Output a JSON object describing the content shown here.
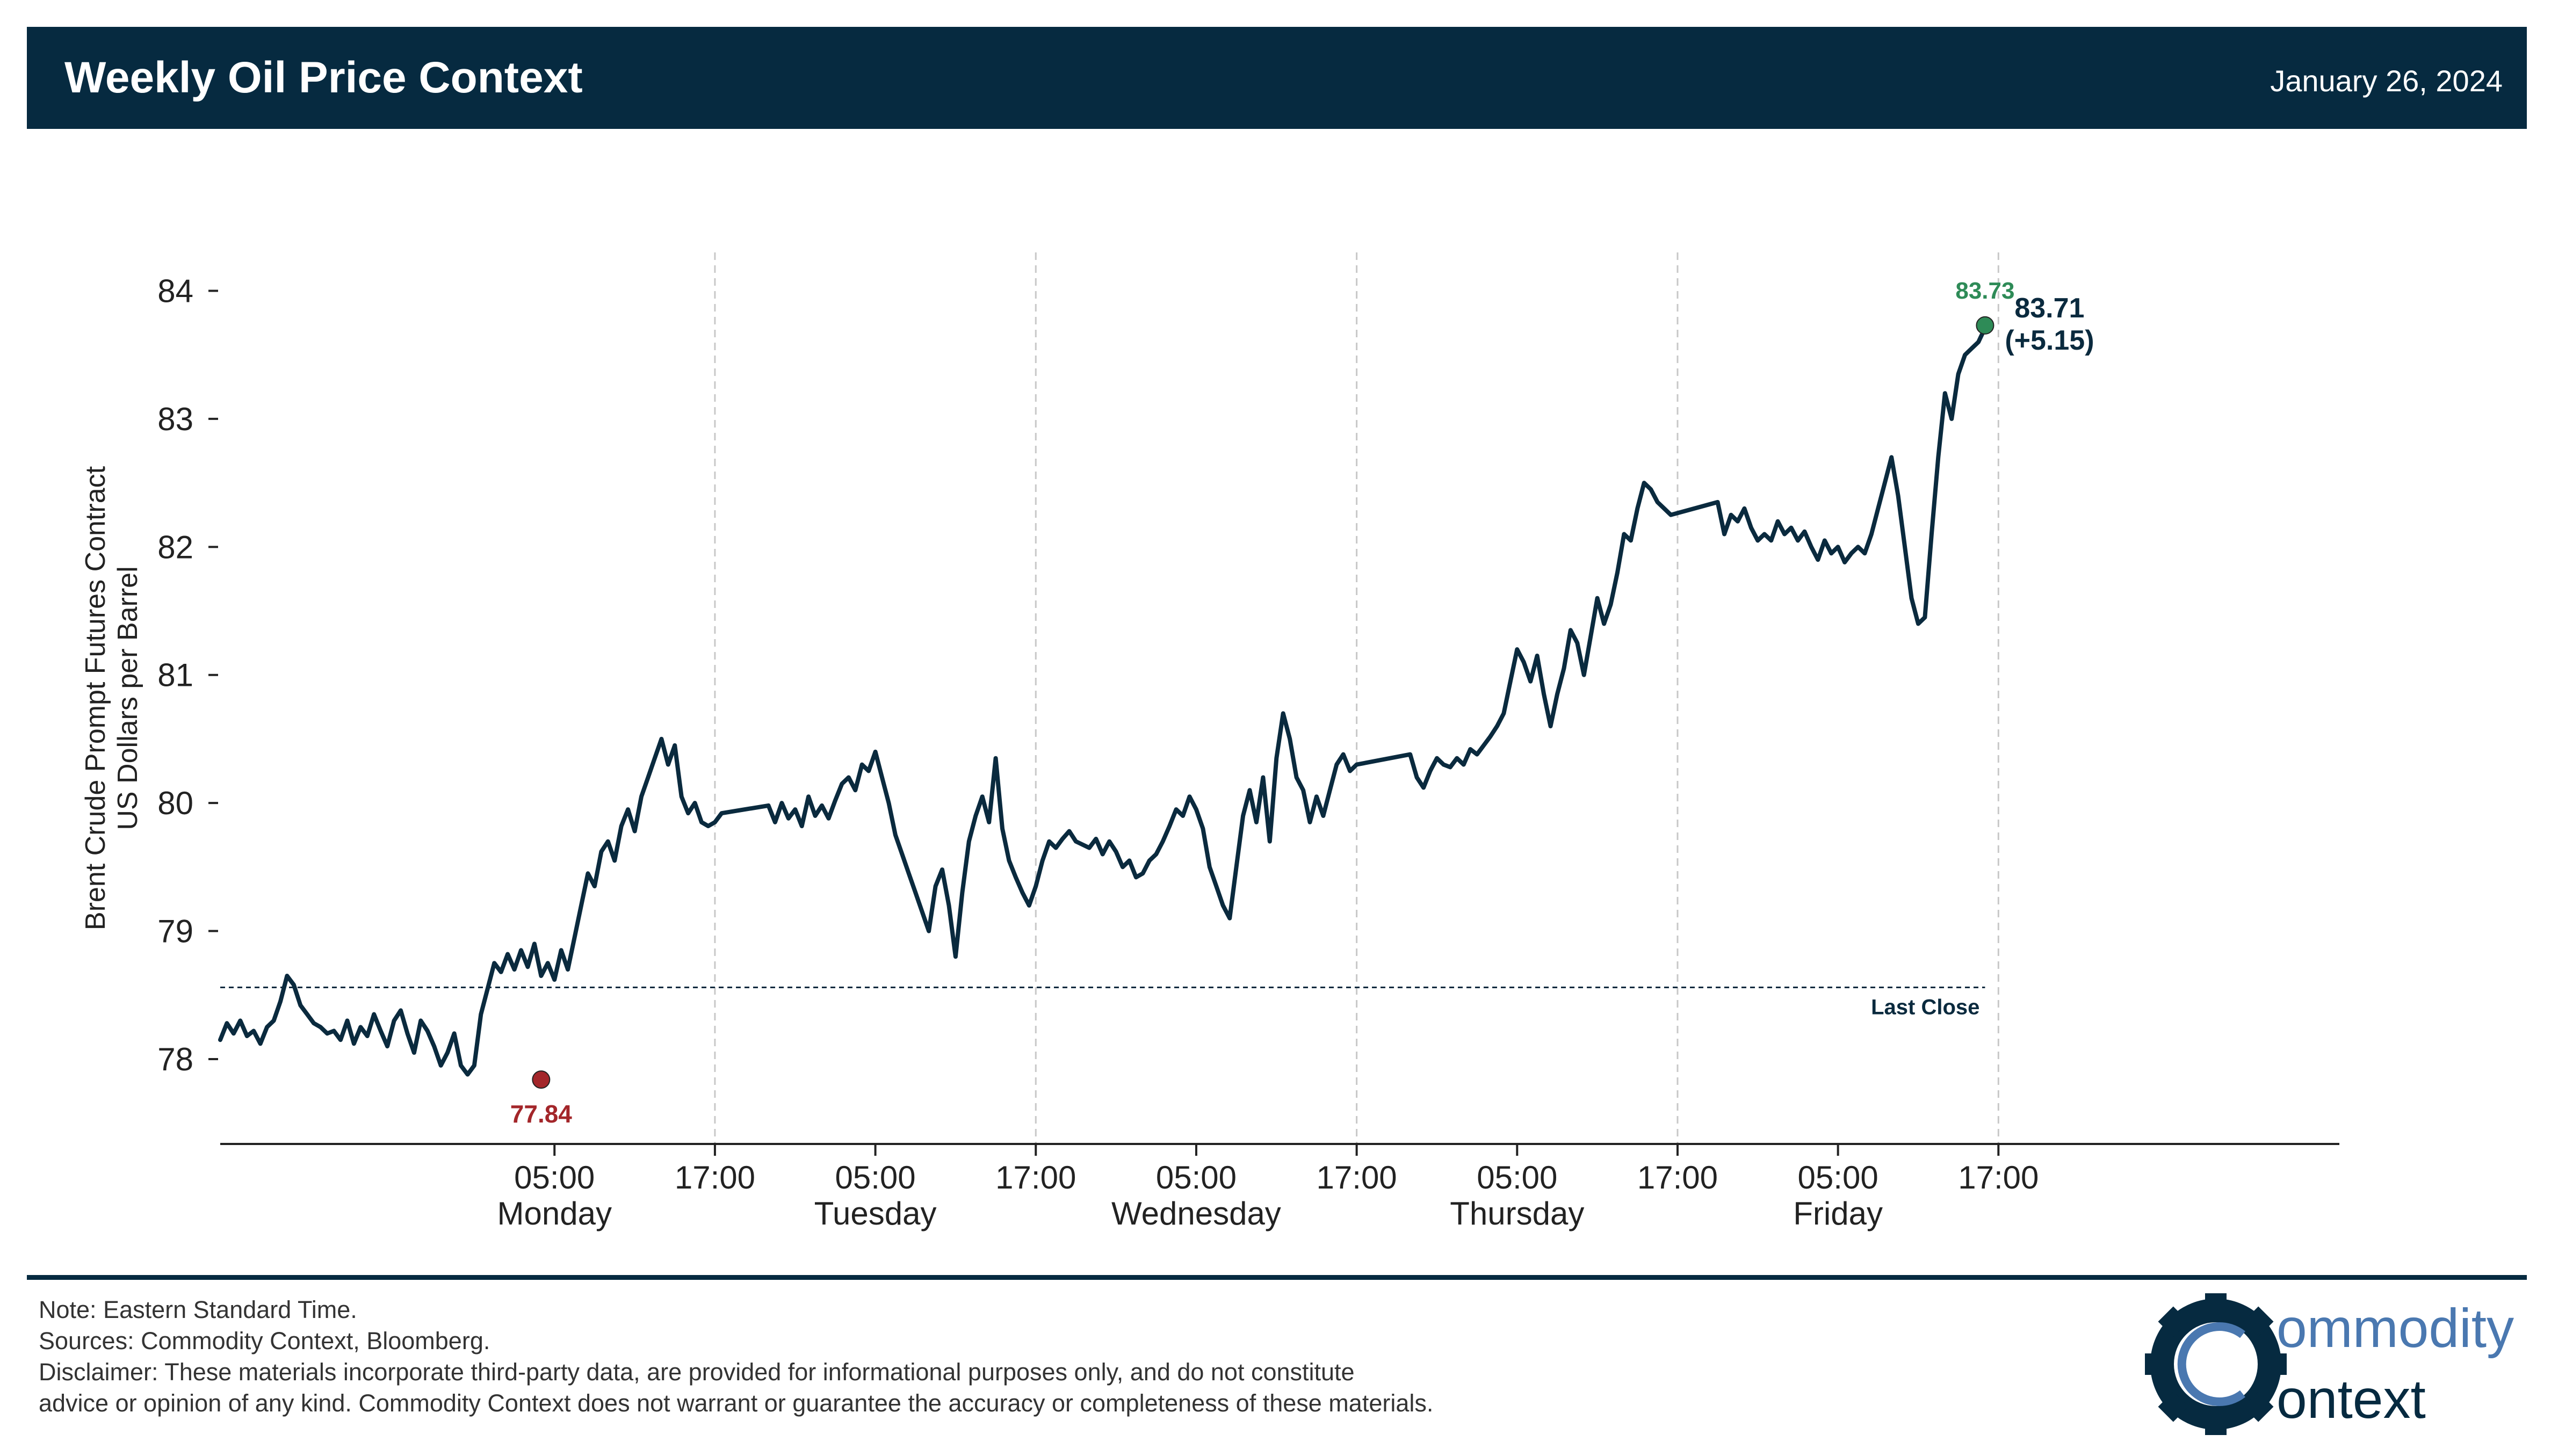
{
  "header": {
    "title": "Weekly Oil Price Context",
    "date": "January 26, 2024"
  },
  "colors": {
    "header_bg": "#062a40",
    "line": "#0a2a3e",
    "low_marker": "#a3262a",
    "high_marker": "#2e8b57",
    "grid": "#c8c8c8"
  },
  "chart_data": {
    "type": "line",
    "title": "",
    "ylabel_line1": "Brent Crude Prompt Futures Contract",
    "ylabel_line2": "US Dollars per Barrel",
    "ylim": [
      77.4,
      84.3
    ],
    "yticks": [
      78,
      79,
      80,
      81,
      82,
      83,
      84
    ],
    "xlim_hours": [
      -20,
      138.5
    ],
    "x_ticks": [
      {
        "hours": 5,
        "time": "05:00",
        "day": "Monday"
      },
      {
        "hours": 17,
        "time": "17:00",
        "day": ""
      },
      {
        "hours": 29,
        "time": "05:00",
        "day": "Tuesday"
      },
      {
        "hours": 41,
        "time": "17:00",
        "day": ""
      },
      {
        "hours": 53,
        "time": "05:00",
        "day": "Wednesday"
      },
      {
        "hours": 65,
        "time": "17:00",
        "day": ""
      },
      {
        "hours": 77,
        "time": "05:00",
        "day": "Thursday"
      },
      {
        "hours": 89,
        "time": "17:00",
        "day": ""
      },
      {
        "hours": 101,
        "time": "05:00",
        "day": "Friday"
      },
      {
        "hours": 113,
        "time": "17:00",
        "day": ""
      }
    ],
    "gridlines_hours": [
      17,
      41,
      65,
      89,
      113
    ],
    "x_hours_note": "hours since Monday 00:00 EST",
    "series": [
      {
        "name": "Brent",
        "points": [
          [
            -20,
            78.15
          ],
          [
            -19.5,
            78.28
          ],
          [
            -19,
            78.2
          ],
          [
            -18.5,
            78.3
          ],
          [
            -18,
            78.18
          ],
          [
            -17.5,
            78.22
          ],
          [
            -17,
            78.12
          ],
          [
            -16.5,
            78.25
          ],
          [
            -16,
            78.3
          ],
          [
            -15.5,
            78.45
          ],
          [
            -15,
            78.65
          ],
          [
            -14.5,
            78.58
          ],
          [
            -14,
            78.42
          ],
          [
            -13.5,
            78.35
          ],
          [
            -13,
            78.28
          ],
          [
            -12.5,
            78.25
          ],
          [
            -12,
            78.2
          ],
          [
            -11.5,
            78.22
          ],
          [
            -11,
            78.15
          ],
          [
            -10.5,
            78.3
          ],
          [
            -10,
            78.12
          ],
          [
            -9.5,
            78.25
          ],
          [
            -9,
            78.18
          ],
          [
            -8.5,
            78.35
          ],
          [
            -8,
            78.22
          ],
          [
            -7.5,
            78.1
          ],
          [
            -7,
            78.3
          ],
          [
            -6.5,
            78.38
          ],
          [
            -6,
            78.2
          ],
          [
            -5.5,
            78.05
          ],
          [
            -5,
            78.3
          ],
          [
            -4.5,
            78.22
          ],
          [
            -4,
            78.1
          ],
          [
            -3.5,
            77.95
          ],
          [
            -3,
            78.05
          ],
          [
            -2.5,
            78.2
          ],
          [
            -2,
            77.95
          ],
          [
            -1.5,
            77.88
          ],
          [
            -1,
            77.95
          ],
          [
            -0.5,
            78.35
          ],
          [
            0,
            78.55
          ],
          [
            0.5,
            78.75
          ],
          [
            1,
            78.68
          ],
          [
            1.5,
            78.82
          ],
          [
            2,
            78.7
          ],
          [
            2.5,
            78.85
          ],
          [
            3,
            78.72
          ],
          [
            3.5,
            78.9
          ],
          [
            4,
            78.65
          ],
          [
            4.5,
            78.75
          ],
          [
            5,
            78.62
          ],
          [
            5.5,
            78.85
          ],
          [
            6,
            78.7
          ],
          [
            6.5,
            78.95
          ],
          [
            7,
            79.2
          ],
          [
            7.5,
            79.45
          ],
          [
            8,
            79.35
          ],
          [
            8.5,
            79.62
          ],
          [
            9,
            79.7
          ],
          [
            9.5,
            79.55
          ],
          [
            10,
            79.82
          ],
          [
            10.5,
            79.95
          ],
          [
            11,
            79.78
          ],
          [
            11.5,
            80.05
          ],
          [
            12,
            80.2
          ],
          [
            12.5,
            80.35
          ],
          [
            13,
            80.5
          ],
          [
            13.5,
            80.3
          ],
          [
            14,
            80.45
          ],
          [
            14.5,
            80.05
          ],
          [
            15,
            79.92
          ],
          [
            15.5,
            80.0
          ],
          [
            16,
            79.85
          ],
          [
            16.5,
            79.82
          ],
          [
            17,
            79.85
          ],
          [
            17.5,
            79.92
          ],
          [
            21,
            79.98
          ],
          [
            21.5,
            79.85
          ],
          [
            22,
            80.0
          ],
          [
            22.5,
            79.88
          ],
          [
            23,
            79.95
          ],
          [
            23.5,
            79.82
          ],
          [
            24,
            80.05
          ],
          [
            24.5,
            79.9
          ],
          [
            25,
            79.98
          ],
          [
            25.5,
            79.88
          ],
          [
            26,
            80.02
          ],
          [
            26.5,
            80.15
          ],
          [
            27,
            80.2
          ],
          [
            27.5,
            80.1
          ],
          [
            28,
            80.3
          ],
          [
            28.5,
            80.25
          ],
          [
            29,
            80.4
          ],
          [
            29.5,
            80.2
          ],
          [
            30,
            80.0
          ],
          [
            30.5,
            79.75
          ],
          [
            31,
            79.6
          ],
          [
            31.5,
            79.45
          ],
          [
            32,
            79.3
          ],
          [
            32.5,
            79.15
          ],
          [
            33,
            79.0
          ],
          [
            33.5,
            79.35
          ],
          [
            34,
            79.48
          ],
          [
            34.5,
            79.2
          ],
          [
            35,
            78.8
          ],
          [
            35.5,
            79.3
          ],
          [
            36,
            79.7
          ],
          [
            36.5,
            79.9
          ],
          [
            37,
            80.05
          ],
          [
            37.5,
            79.85
          ],
          [
            38,
            80.35
          ],
          [
            38.5,
            79.8
          ],
          [
            39,
            79.55
          ],
          [
            39.5,
            79.42
          ],
          [
            40,
            79.3
          ],
          [
            40.5,
            79.2
          ],
          [
            41,
            79.35
          ],
          [
            41.5,
            79.55
          ],
          [
            42,
            79.7
          ],
          [
            42.5,
            79.65
          ],
          [
            43,
            79.72
          ],
          [
            43.5,
            79.78
          ],
          [
            44,
            79.7
          ],
          [
            45,
            79.65
          ],
          [
            45.5,
            79.72
          ],
          [
            46,
            79.6
          ],
          [
            46.5,
            79.7
          ],
          [
            47,
            79.62
          ],
          [
            47.5,
            79.5
          ],
          [
            48,
            79.55
          ],
          [
            48.5,
            79.42
          ],
          [
            49,
            79.45
          ],
          [
            49.5,
            79.55
          ],
          [
            50,
            79.6
          ],
          [
            50.5,
            79.7
          ],
          [
            51,
            79.82
          ],
          [
            51.5,
            79.95
          ],
          [
            52,
            79.9
          ],
          [
            52.5,
            80.05
          ],
          [
            53,
            79.95
          ],
          [
            53.5,
            79.8
          ],
          [
            54,
            79.5
          ],
          [
            54.5,
            79.35
          ],
          [
            55,
            79.2
          ],
          [
            55.5,
            79.1
          ],
          [
            56,
            79.5
          ],
          [
            56.5,
            79.9
          ],
          [
            57,
            80.1
          ],
          [
            57.5,
            79.85
          ],
          [
            58,
            80.2
          ],
          [
            58.5,
            79.7
          ],
          [
            59,
            80.35
          ],
          [
            59.5,
            80.7
          ],
          [
            60,
            80.5
          ],
          [
            60.5,
            80.2
          ],
          [
            61,
            80.1
          ],
          [
            61.5,
            79.85
          ],
          [
            62,
            80.05
          ],
          [
            62.5,
            79.9
          ],
          [
            63,
            80.1
          ],
          [
            63.5,
            80.3
          ],
          [
            64,
            80.38
          ],
          [
            64.5,
            80.25
          ],
          [
            65,
            80.3
          ],
          [
            69,
            80.38
          ],
          [
            69.5,
            80.2
          ],
          [
            70,
            80.12
          ],
          [
            70.5,
            80.25
          ],
          [
            71,
            80.35
          ],
          [
            71.5,
            80.3
          ],
          [
            72,
            80.28
          ],
          [
            72.5,
            80.35
          ],
          [
            73,
            80.3
          ],
          [
            73.5,
            80.42
          ],
          [
            74,
            80.38
          ],
          [
            74.5,
            80.45
          ],
          [
            75,
            80.52
          ],
          [
            75.5,
            80.6
          ],
          [
            76,
            80.7
          ],
          [
            76.5,
            80.95
          ],
          [
            77,
            81.2
          ],
          [
            77.5,
            81.1
          ],
          [
            78,
            80.95
          ],
          [
            78.5,
            81.15
          ],
          [
            79,
            80.85
          ],
          [
            79.5,
            80.6
          ],
          [
            80,
            80.85
          ],
          [
            80.5,
            81.05
          ],
          [
            81,
            81.35
          ],
          [
            81.5,
            81.25
          ],
          [
            82,
            81.0
          ],
          [
            82.5,
            81.3
          ],
          [
            83,
            81.6
          ],
          [
            83.5,
            81.4
          ],
          [
            84,
            81.55
          ],
          [
            84.5,
            81.8
          ],
          [
            85,
            82.1
          ],
          [
            85.5,
            82.05
          ],
          [
            86,
            82.3
          ],
          [
            86.5,
            82.5
          ],
          [
            87,
            82.45
          ],
          [
            87.5,
            82.35
          ],
          [
            88,
            82.3
          ],
          [
            88.5,
            82.25
          ],
          [
            92,
            82.35
          ],
          [
            92.5,
            82.1
          ],
          [
            93,
            82.25
          ],
          [
            93.5,
            82.2
          ],
          [
            94,
            82.3
          ],
          [
            94.5,
            82.15
          ],
          [
            95,
            82.05
          ],
          [
            95.5,
            82.1
          ],
          [
            96,
            82.05
          ],
          [
            96.5,
            82.2
          ],
          [
            97,
            82.1
          ],
          [
            97.5,
            82.15
          ],
          [
            98,
            82.05
          ],
          [
            98.5,
            82.12
          ],
          [
            99,
            82.0
          ],
          [
            99.5,
            81.9
          ],
          [
            100,
            82.05
          ],
          [
            100.5,
            81.95
          ],
          [
            101,
            82.0
          ],
          [
            101.5,
            81.88
          ],
          [
            102,
            81.95
          ],
          [
            102.5,
            82.0
          ],
          [
            103,
            81.95
          ],
          [
            103.5,
            82.1
          ],
          [
            104,
            82.3
          ],
          [
            104.5,
            82.5
          ],
          [
            105,
            82.7
          ],
          [
            105.5,
            82.4
          ],
          [
            106,
            82.0
          ],
          [
            106.5,
            81.6
          ],
          [
            107,
            81.4
          ],
          [
            107.5,
            81.45
          ],
          [
            108,
            82.1
          ],
          [
            108.5,
            82.7
          ],
          [
            109,
            83.2
          ],
          [
            109.5,
            83.0
          ],
          [
            110,
            83.35
          ],
          [
            110.5,
            83.5
          ],
          [
            111,
            83.55
          ],
          [
            111.5,
            83.6
          ],
          [
            112,
            83.71
          ]
        ]
      }
    ],
    "last_close": {
      "value": 78.56,
      "label": "Last Close"
    },
    "low": {
      "x_hours": 4,
      "value": 77.84,
      "label": "77.84"
    },
    "high": {
      "x_hours": 112,
      "value": 83.73,
      "label": "83.73"
    },
    "end_label": {
      "price": "83.71",
      "change": "(+5.15)"
    }
  },
  "footer": {
    "note": "Note: Eastern Standard Time.",
    "sources": "Sources: Commodity Context, Bloomberg.",
    "disclaimer_line1": "Disclaimer: These materials incorporate third-party data, are provided for informational purposes only, and do not constitute",
    "disclaimer_line2": "advice or opinion of any kind. Commodity Context does not warrant or guarantee the accuracy or completeness of these materials."
  },
  "logo": {
    "word1": "ommodity",
    "word2": "ontext"
  }
}
